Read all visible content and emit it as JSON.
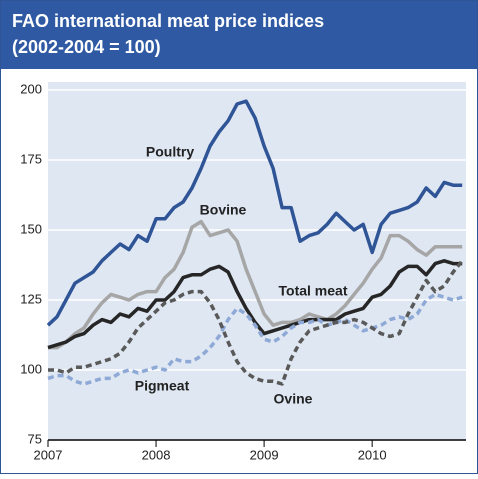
{
  "chart_data": {
    "type": "line",
    "title": "FAO international meat price indices",
    "subtitle": "(2002-2004 = 100)",
    "x": [
      2007,
      2007.083,
      2007.167,
      2007.25,
      2007.333,
      2007.417,
      2007.5,
      2007.583,
      2007.667,
      2007.75,
      2007.833,
      2007.917,
      2008,
      2008.083,
      2008.167,
      2008.25,
      2008.333,
      2008.417,
      2008.5,
      2008.583,
      2008.667,
      2008.75,
      2008.833,
      2008.917,
      2009,
      2009.083,
      2009.167,
      2009.25,
      2009.333,
      2009.417,
      2009.5,
      2009.583,
      2009.667,
      2009.75,
      2009.833,
      2009.917,
      2010,
      2010.083,
      2010.167,
      2010.25,
      2010.333,
      2010.417,
      2010.5,
      2010.583,
      2010.667,
      2010.75,
      2010.833
    ],
    "series": [
      {
        "name": "Poultry",
        "color": "#2f5597",
        "dash": false,
        "values": [
          116,
          119,
          125,
          131,
          133,
          135,
          139,
          142,
          145,
          143,
          148,
          146,
          154,
          154,
          158,
          160,
          165,
          172,
          180,
          185,
          189,
          195,
          196,
          190,
          180,
          172,
          158,
          158,
          146,
          148,
          149,
          152,
          156,
          153,
          150,
          152,
          142,
          152,
          156,
          157,
          158,
          160,
          165,
          162,
          167,
          166,
          166
        ]
      },
      {
        "name": "Bovine",
        "color": "#a6a6a6",
        "dash": false,
        "values": [
          108,
          108,
          110,
          113,
          115,
          120,
          124,
          127,
          126,
          125,
          127,
          128,
          128,
          133,
          136,
          142,
          151,
          153,
          148,
          149,
          150,
          146,
          136,
          128,
          120,
          116,
          117,
          117,
          118,
          120,
          119,
          118,
          120,
          123,
          127,
          131,
          136,
          140,
          148,
          148,
          146,
          143,
          141,
          144,
          144,
          144,
          144
        ]
      },
      {
        "name": "Total meat",
        "color": "#262626",
        "dash": false,
        "values": [
          108,
          109,
          110,
          112,
          113,
          116,
          118,
          117,
          120,
          119,
          122,
          121,
          125,
          125,
          128,
          133,
          134,
          134,
          136,
          137,
          135,
          128,
          122,
          117,
          113,
          114,
          115,
          116,
          117,
          118,
          118,
          118,
          118,
          120,
          121,
          122,
          126,
          127,
          130,
          135,
          137,
          137,
          134,
          138,
          139,
          138,
          138
        ]
      },
      {
        "name": "Pigmeat",
        "color": "#8fa9d6",
        "dash": true,
        "values": [
          97,
          98,
          98,
          96,
          95,
          96,
          97,
          97,
          99,
          100,
          99,
          100,
          101,
          100,
          104,
          103,
          103,
          105,
          108,
          112,
          118,
          122,
          120,
          116,
          111,
          110,
          112,
          115,
          117,
          117,
          118,
          116,
          117,
          118,
          116,
          114,
          115,
          116,
          118,
          119,
          118,
          120,
          125,
          127,
          126,
          125,
          126
        ]
      },
      {
        "name": "Ovine",
        "color": "#595959",
        "dash": true,
        "values": [
          100,
          100,
          99,
          101,
          101,
          102,
          103,
          104,
          106,
          110,
          115,
          118,
          121,
          124,
          125,
          127,
          128,
          128,
          124,
          118,
          110,
          103,
          99,
          97,
          96,
          96,
          95,
          104,
          110,
          114,
          115,
          116,
          117,
          117,
          118,
          117,
          115,
          113,
          112,
          113,
          120,
          126,
          132,
          128,
          130,
          135,
          139
        ]
      }
    ],
    "xlim": [
      2007,
      2010.85
    ],
    "xticks": [
      2007,
      2008,
      2009,
      2010
    ],
    "ylim": [
      75,
      200
    ],
    "yticks": [
      75,
      100,
      125,
      150,
      175,
      200
    ],
    "grid": true
  }
}
